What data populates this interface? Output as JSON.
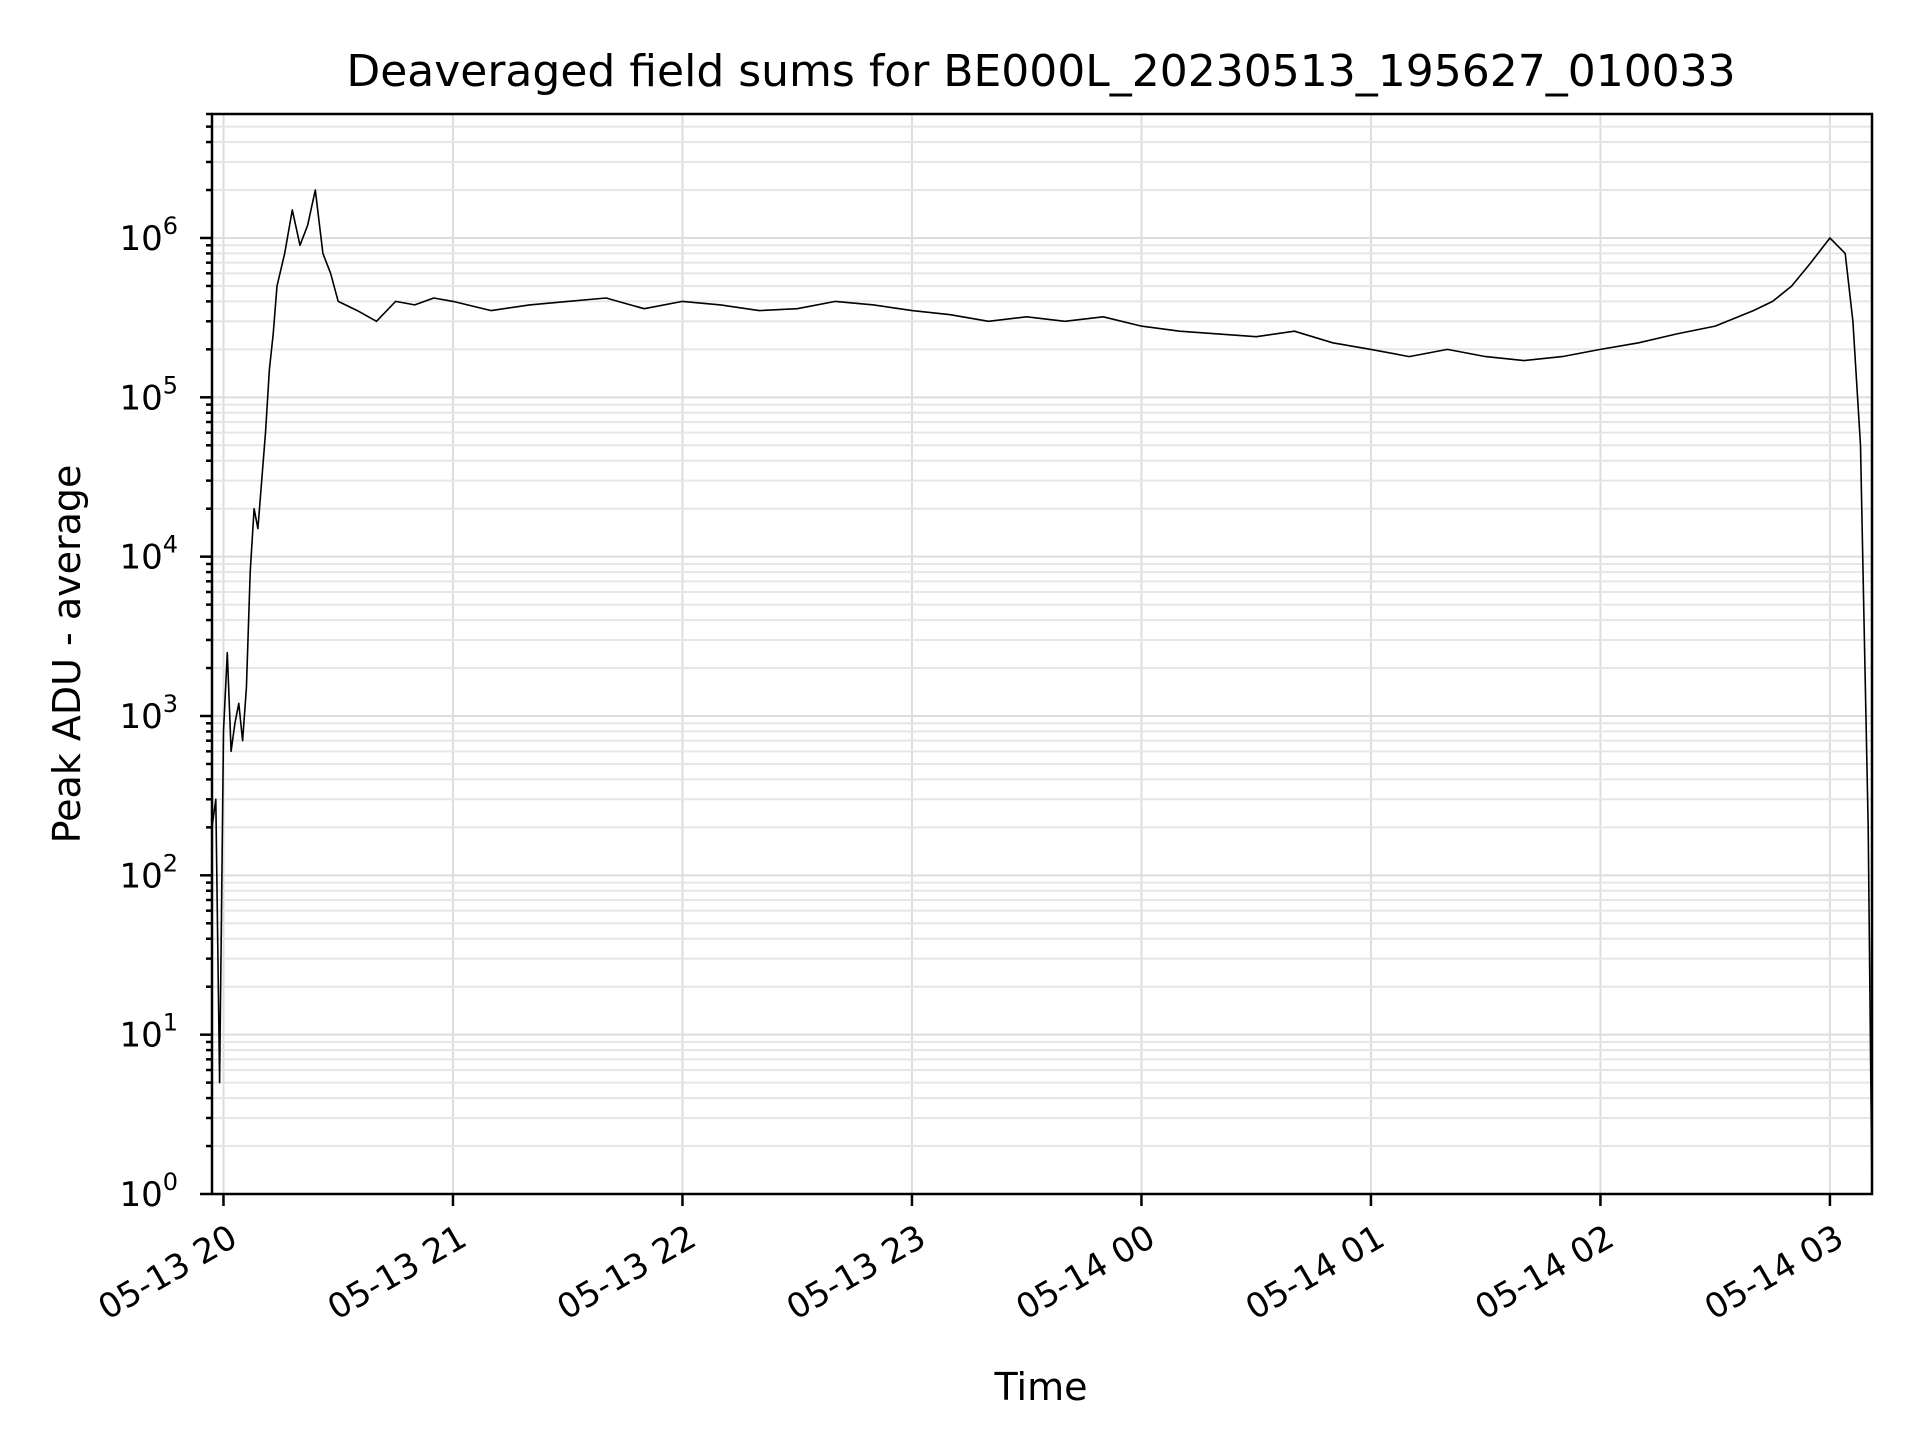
{
  "chart_data": {
    "type": "line",
    "title": "Deaveraged field sums for BE000L_20230513_195627_010033",
    "xlabel": "Time",
    "ylabel": "Peak ADU - average",
    "yscale": "log",
    "ylim": [
      1,
      6000000
    ],
    "xlim": [
      "2023-05-13 19:57",
      "2023-05-14 03:11"
    ],
    "x_ticks": [
      {
        "label": "05-13 20",
        "time": "2023-05-13 20:00"
      },
      {
        "label": "05-13 21",
        "time": "2023-05-13 21:00"
      },
      {
        "label": "05-13 22",
        "time": "2023-05-13 22:00"
      },
      {
        "label": "05-13 23",
        "time": "2023-05-13 23:00"
      },
      {
        "label": "05-14 00",
        "time": "2023-05-14 00:00"
      },
      {
        "label": "05-14 01",
        "time": "2023-05-14 01:00"
      },
      {
        "label": "05-14 02",
        "time": "2023-05-14 02:00"
      },
      {
        "label": "05-14 03",
        "time": "2023-05-14 03:00"
      }
    ],
    "y_ticks": [
      {
        "base": "10",
        "exp": "0",
        "value": 1
      },
      {
        "base": "10",
        "exp": "1",
        "value": 10
      },
      {
        "base": "10",
        "exp": "2",
        "value": 100
      },
      {
        "base": "10",
        "exp": "3",
        "value": 1000
      },
      {
        "base": "10",
        "exp": "4",
        "value": 10000
      },
      {
        "base": "10",
        "exp": "5",
        "value": 100000
      },
      {
        "base": "10",
        "exp": "6",
        "value": 1000000
      }
    ],
    "grid": true,
    "series": [
      {
        "color": "#000000",
        "x": [
          "2023-05-13 19:57",
          "2023-05-13 19:58",
          "2023-05-13 19:59",
          "2023-05-13 20:00",
          "2023-05-13 20:01",
          "2023-05-13 20:02",
          "2023-05-13 20:03",
          "2023-05-13 20:04",
          "2023-05-13 20:05",
          "2023-05-13 20:06",
          "2023-05-13 20:07",
          "2023-05-13 20:08",
          "2023-05-13 20:09",
          "2023-05-13 20:10",
          "2023-05-13 20:11",
          "2023-05-13 20:12",
          "2023-05-13 20:13",
          "2023-05-13 20:14",
          "2023-05-13 20:16",
          "2023-05-13 20:18",
          "2023-05-13 20:20",
          "2023-05-13 20:22",
          "2023-05-13 20:24",
          "2023-05-13 20:26",
          "2023-05-13 20:28",
          "2023-05-13 20:30",
          "2023-05-13 20:35",
          "2023-05-13 20:40",
          "2023-05-13 20:45",
          "2023-05-13 20:50",
          "2023-05-13 20:55",
          "2023-05-13 21:00",
          "2023-05-13 21:10",
          "2023-05-13 21:20",
          "2023-05-13 21:30",
          "2023-05-13 21:40",
          "2023-05-13 21:50",
          "2023-05-13 22:00",
          "2023-05-13 22:10",
          "2023-05-13 22:20",
          "2023-05-13 22:30",
          "2023-05-13 22:40",
          "2023-05-13 22:50",
          "2023-05-13 23:00",
          "2023-05-13 23:10",
          "2023-05-13 23:20",
          "2023-05-13 23:30",
          "2023-05-13 23:40",
          "2023-05-13 23:50",
          "2023-05-14 00:00",
          "2023-05-14 00:10",
          "2023-05-14 00:20",
          "2023-05-14 00:30",
          "2023-05-14 00:40",
          "2023-05-14 00:50",
          "2023-05-14 01:00",
          "2023-05-14 01:10",
          "2023-05-14 01:20",
          "2023-05-14 01:30",
          "2023-05-14 01:40",
          "2023-05-14 01:50",
          "2023-05-14 02:00",
          "2023-05-14 02:10",
          "2023-05-14 02:20",
          "2023-05-14 02:30",
          "2023-05-14 02:40",
          "2023-05-14 02:45",
          "2023-05-14 02:50",
          "2023-05-14 02:55",
          "2023-05-14 03:00",
          "2023-05-14 03:04",
          "2023-05-14 03:06",
          "2023-05-14 03:08",
          "2023-05-14 03:09",
          "2023-05-14 03:10",
          "2023-05-14 03:11"
        ],
        "y": [
          200,
          300,
          5,
          800,
          2500,
          600,
          900,
          1200,
          700,
          1500,
          8000,
          20000,
          15000,
          30000,
          60000,
          150000,
          250000,
          500000,
          800000,
          1500000,
          900000,
          1200000,
          2000000,
          800000,
          600000,
          400000,
          350000,
          300000,
          400000,
          380000,
          420000,
          400000,
          350000,
          380000,
          400000,
          420000,
          360000,
          400000,
          380000,
          350000,
          360000,
          400000,
          380000,
          350000,
          330000,
          300000,
          320000,
          300000,
          320000,
          280000,
          260000,
          250000,
          240000,
          260000,
          220000,
          200000,
          180000,
          200000,
          180000,
          170000,
          180000,
          200000,
          220000,
          250000,
          280000,
          350000,
          400000,
          500000,
          700000,
          1000000,
          800000,
          300000,
          50000,
          3000,
          200,
          1
        ]
      }
    ]
  }
}
